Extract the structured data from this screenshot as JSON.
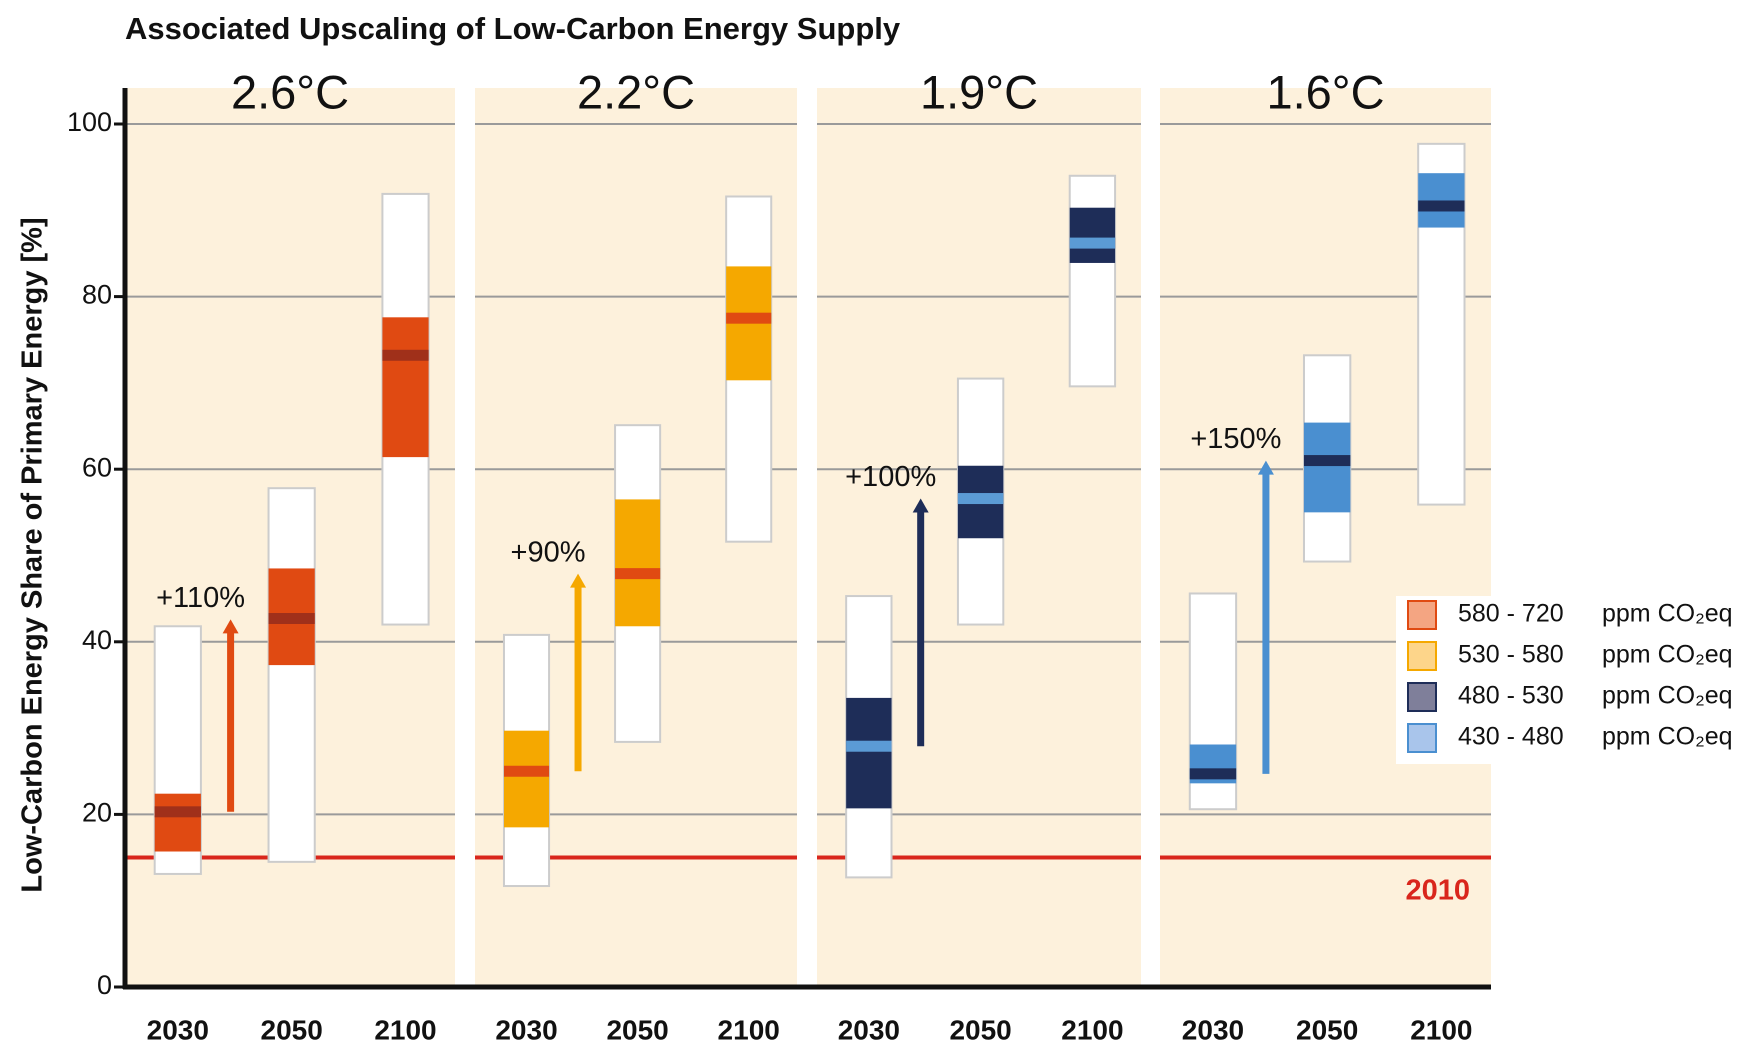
{
  "chart_data": {
    "type": "range",
    "title": "Associated Upscaling of Low-Carbon Energy Supply",
    "ylabel": "Low-Carbon Energy Share of Primary Energy [%]",
    "ylim": [
      0,
      100
    ],
    "yticks": [
      0,
      20,
      40,
      60,
      80,
      100
    ],
    "grid": true,
    "reference": {
      "value": 15,
      "label": "2010",
      "color": "#d9261c"
    },
    "legend": [
      {
        "range": "580 - 720",
        "unit": "ppm CO₂eq",
        "fill": "#f4a582",
        "edge": "#e04a12"
      },
      {
        "range": "530 - 580",
        "unit": "ppm CO₂eq",
        "fill": "#fdd58a",
        "edge": "#f5a800"
      },
      {
        "range": "480 - 530",
        "unit": "ppm CO₂eq",
        "fill": "#7f7f9a",
        "edge": "#1e2d58"
      },
      {
        "range": "430 - 480",
        "unit": "ppm CO₂eq",
        "fill": "#a9c5eb",
        "edge": "#4a8fd0"
      }
    ],
    "panels": [
      {
        "title": "2.6°C",
        "color": "#e04a12",
        "median_color": "#a0301a",
        "categories": [
          "2030",
          "2050",
          "2100"
        ],
        "low": [
          13.1,
          14.5,
          42
        ],
        "high": [
          41.8,
          57.8,
          91.9
        ],
        "q1": [
          15.7,
          37.3,
          61.4
        ],
        "q3": [
          22.4,
          48.5,
          77.6
        ],
        "median": [
          20.3,
          42.7,
          73.2
        ],
        "arrow": {
          "from": 20.3,
          "to": 42.6,
          "label": "+110%"
        }
      },
      {
        "title": "2.2°C",
        "color": "#f5a800",
        "median_color": "#e04a12",
        "categories": [
          "2030",
          "2050",
          "2100"
        ],
        "low": [
          11.7,
          28.4,
          51.6
        ],
        "high": [
          40.8,
          65.1,
          91.6
        ],
        "q1": [
          18.5,
          41.8,
          70.3
        ],
        "q3": [
          29.7,
          56.5,
          83.5
        ],
        "median": [
          25,
          47.9,
          77.5
        ],
        "arrow": {
          "from": 25,
          "to": 47.9,
          "label": "+90%"
        }
      },
      {
        "title": "1.9°C",
        "color": "#1e2d58",
        "median_color": "#5b9bd5",
        "categories": [
          "2030",
          "2050",
          "2100"
        ],
        "low": [
          12.7,
          42,
          69.6
        ],
        "high": [
          45.3,
          70.5,
          94
        ],
        "q1": [
          20.7,
          52,
          83.9
        ],
        "q3": [
          33.5,
          60.4,
          90.3
        ],
        "median": [
          27.9,
          56.6,
          86.2
        ],
        "arrow": {
          "from": 27.9,
          "to": 56.6,
          "label": "+100%"
        }
      },
      {
        "title": "1.6°C",
        "color": "#4a8fd0",
        "median_color": "#1e2d58",
        "categories": [
          "2030",
          "2050",
          "2100"
        ],
        "low": [
          20.6,
          49.3,
          55.9
        ],
        "high": [
          45.6,
          73.2,
          97.7
        ],
        "q1": [
          23.6,
          55,
          88
        ],
        "q3": [
          28.1,
          65.4,
          94.3
        ],
        "median": [
          24.7,
          61,
          90.5
        ],
        "arrow": {
          "from": 24.7,
          "to": 61,
          "label": "+150%"
        }
      }
    ]
  }
}
